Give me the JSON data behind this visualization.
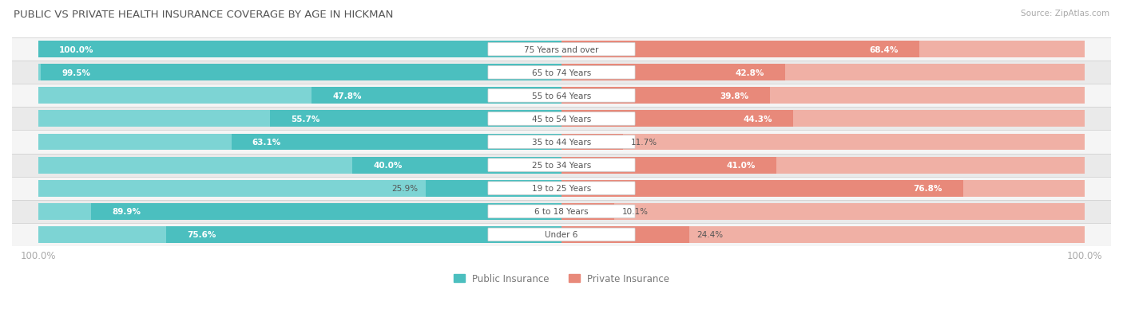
{
  "title": "PUBLIC VS PRIVATE HEALTH INSURANCE COVERAGE BY AGE IN HICKMAN",
  "source": "Source: ZipAtlas.com",
  "categories": [
    "Under 6",
    "6 to 18 Years",
    "19 to 25 Years",
    "25 to 34 Years",
    "35 to 44 Years",
    "45 to 54 Years",
    "55 to 64 Years",
    "65 to 74 Years",
    "75 Years and over"
  ],
  "public_values": [
    75.6,
    89.9,
    25.9,
    40.0,
    63.1,
    55.7,
    47.8,
    99.5,
    100.0
  ],
  "private_values": [
    24.4,
    10.1,
    76.8,
    41.0,
    11.7,
    44.3,
    39.8,
    42.8,
    68.4
  ],
  "public_color": "#4bbfbf",
  "private_color": "#e8897a",
  "public_color_light": "#7dd4d4",
  "private_color_light": "#f0b0a5",
  "row_bg_odd": "#f5f5f5",
  "row_bg_even": "#eaeaea",
  "title_color": "#555555",
  "label_color_dark": "#555555",
  "axis_label_color": "#aaaaaa",
  "legend_label_color": "#777777",
  "figsize": [
    14.06,
    4.14
  ],
  "dpi": 100
}
